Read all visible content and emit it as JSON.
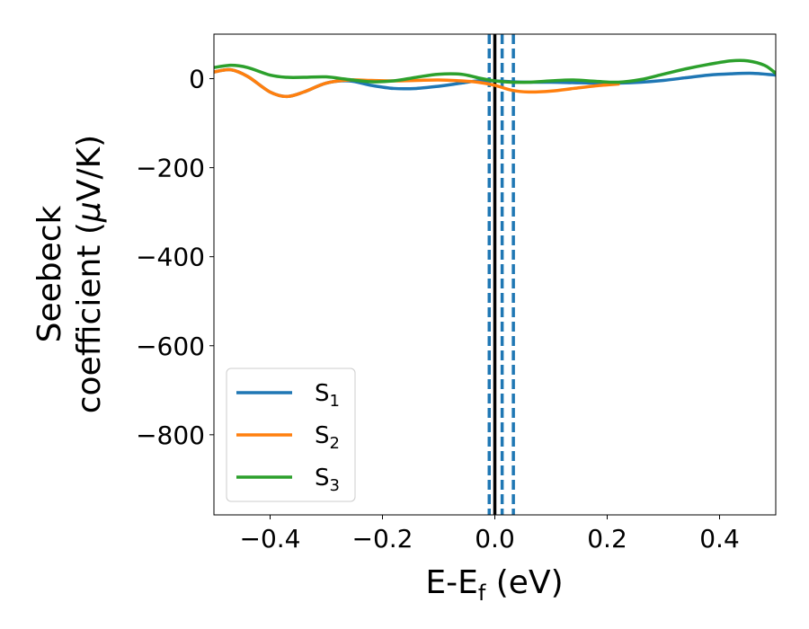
{
  "chart_data": {
    "type": "line",
    "xlabel": {
      "main": "E-E",
      "sub": "f",
      "tail": " (eV)"
    },
    "ylabel": {
      "line1": "Seebeck",
      "line2_main": "coefficient  (",
      "line2_mu": "μ",
      "line2_tail": "V/K)"
    },
    "xlim": [
      -0.5,
      0.5
    ],
    "ylim": [
      -980,
      100
    ],
    "xticks": [
      -0.4,
      -0.2,
      0.0,
      0.2,
      0.4
    ],
    "xtick_labels": [
      "−0.4",
      "−0.2",
      "0.0",
      "0.2",
      "0.4"
    ],
    "yticks": [
      0,
      -200,
      -400,
      -600,
      -800
    ],
    "ytick_labels": [
      "0",
      "−200",
      "−400",
      "−600",
      "−800"
    ],
    "legend_position": "lower-left",
    "reference_lines": {
      "solid": [
        {
          "x": 0.0,
          "color": "#000000"
        }
      ],
      "dashed": [
        {
          "x": -0.01,
          "color": "#1f77b4"
        },
        {
          "x": 0.013,
          "color": "#1f77b4"
        },
        {
          "x": 0.033,
          "color": "#1f77b4"
        }
      ]
    },
    "series": [
      {
        "name": "S",
        "subscript": "1",
        "color": "#1f77b4",
        "x": [
          -0.5,
          -0.47,
          -0.44,
          -0.4,
          -0.37,
          -0.34,
          -0.3,
          -0.26,
          -0.22,
          -0.18,
          -0.14,
          -0.1,
          -0.06,
          -0.03,
          0.0,
          0.03,
          0.06,
          0.1,
          0.14,
          0.18,
          0.22,
          0.26,
          0.3,
          0.34,
          0.38,
          0.42,
          0.46,
          0.5
        ],
        "y": [
          15,
          20,
          5,
          -30,
          -40,
          -30,
          -10,
          -5,
          -15,
          -22,
          -22,
          -17,
          -10,
          -5,
          -5,
          -7,
          -8,
          -8,
          -9,
          -10,
          -10,
          -8,
          -4,
          2,
          8,
          11,
          12,
          8
        ]
      },
      {
        "name": "S",
        "subscript": "2",
        "color": "#ff7f0e",
        "x": [
          -0.5,
          -0.47,
          -0.44,
          -0.4,
          -0.37,
          -0.34,
          -0.3,
          -0.26,
          -0.22,
          -0.18,
          -0.14,
          -0.1,
          -0.06,
          -0.03,
          0.0,
          0.03,
          0.06,
          0.1,
          0.14,
          0.18,
          0.22
        ],
        "y": [
          15,
          20,
          5,
          -30,
          -40,
          -30,
          -10,
          -3,
          -4,
          -5,
          -4,
          -3,
          -5,
          -8,
          -15,
          -26,
          -30,
          -28,
          -22,
          -16,
          -12
        ]
      },
      {
        "name": "S",
        "subscript": "3",
        "color": "#2ca02c",
        "x": [
          -0.5,
          -0.47,
          -0.44,
          -0.4,
          -0.37,
          -0.34,
          -0.3,
          -0.26,
          -0.22,
          -0.18,
          -0.14,
          -0.1,
          -0.06,
          -0.03,
          0.0,
          0.03,
          0.06,
          0.1,
          0.14,
          0.18,
          0.22,
          0.26,
          0.3,
          0.34,
          0.38,
          0.42,
          0.45,
          0.48,
          0.5
        ],
        "y": [
          25,
          30,
          25,
          8,
          3,
          3,
          4,
          -2,
          -7,
          -5,
          3,
          10,
          10,
          2,
          -5,
          -8,
          -8,
          -5,
          -3,
          -6,
          -8,
          -2,
          10,
          22,
          32,
          40,
          40,
          30,
          12
        ]
      }
    ]
  }
}
